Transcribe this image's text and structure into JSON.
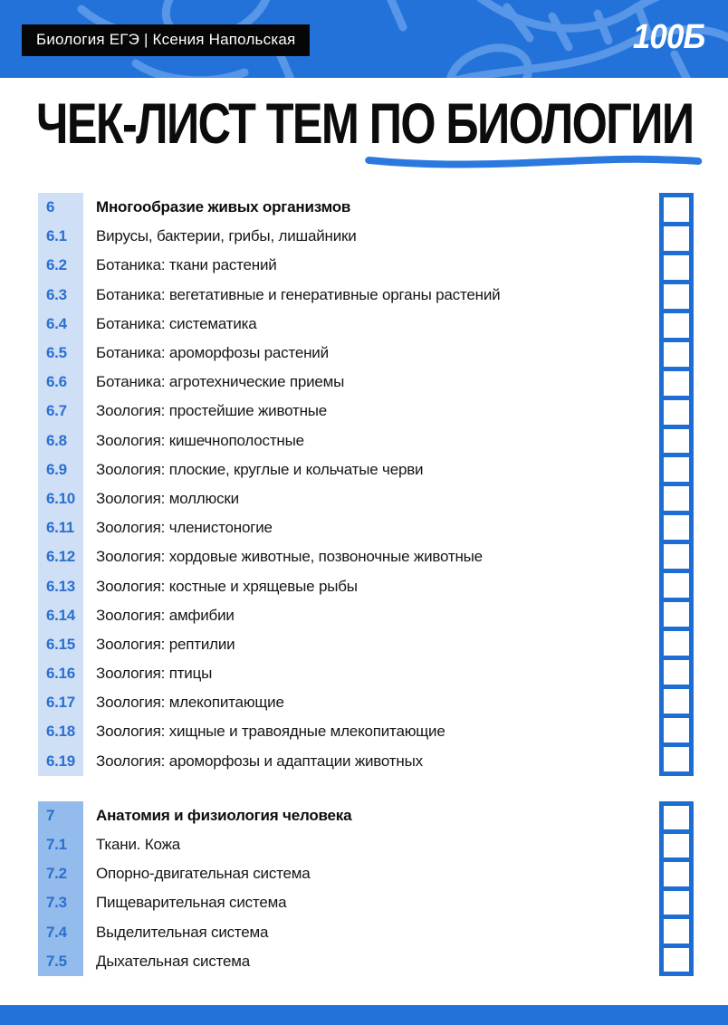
{
  "accent_color": "#1d6dd3",
  "number_color": "#2b6fd0",
  "header": {
    "bg_color": "#2372d9",
    "badge": "Биология ЕГЭ | Ксения Напольская",
    "logo": "100Б"
  },
  "title": {
    "prefix": "ЧЕК-ЛИСТ ТЕМ ",
    "underlined": "ПО БИОЛОГИИ"
  },
  "checkboxes_state": "unchecked",
  "sections": [
    {
      "number": "6",
      "num_col_color": "#cfe0f6",
      "rows": [
        {
          "num": "6",
          "label": "Многообразие живых организмов",
          "bold": true
        },
        {
          "num": "6.1",
          "label": "Вирусы, бактерии, грибы, лишайники"
        },
        {
          "num": "6.2",
          "label": "Ботаника: ткани растений"
        },
        {
          "num": "6.3",
          "label": "Ботаника: вегетативные и генеративные органы растений"
        },
        {
          "num": "6.4",
          "label": "Ботаника: систематика"
        },
        {
          "num": "6.5",
          "label": "Ботаника: ароморфозы растений"
        },
        {
          "num": "6.6",
          "label": "Ботаника: агротехнические приемы"
        },
        {
          "num": "6.7",
          "label": "Зоология: простейшие животные"
        },
        {
          "num": "6.8",
          "label": "Зоология: кишечнополостные"
        },
        {
          "num": "6.9",
          "label": "Зоология: плоские, круглые и кольчатые черви"
        },
        {
          "num": "6.10",
          "label": "Зоология: моллюски"
        },
        {
          "num": "6.11",
          "label": "Зоология: членистоногие"
        },
        {
          "num": "6.12",
          "label": "Зоология: хордовые животные, позвоночные животные"
        },
        {
          "num": "6.13",
          "label": "Зоология: костные и хрящевые рыбы"
        },
        {
          "num": "6.14",
          "label": "Зоология: амфибии"
        },
        {
          "num": "6.15",
          "label": "Зоология: рептилии"
        },
        {
          "num": "6.16",
          "label": "Зоология: птицы"
        },
        {
          "num": "6.17",
          "label": "Зоология: млекопитающие"
        },
        {
          "num": "6.18",
          "label": "Зоология: хищные и травоядные млекопитающие"
        },
        {
          "num": "6.19",
          "label": "Зоология: ароморфозы и адаптации животных"
        }
      ]
    },
    {
      "number": "7",
      "num_col_color": "#93bbec",
      "rows": [
        {
          "num": "7",
          "label": "Анатомия и физиология человека",
          "bold": true
        },
        {
          "num": "7.1",
          "label": "Ткани. Кожа"
        },
        {
          "num": "7.2",
          "label": "Опорно-двигательная система"
        },
        {
          "num": "7.3",
          "label": "Пищеварительная система"
        },
        {
          "num": "7.4",
          "label": "Выделительная система"
        },
        {
          "num": "7.5",
          "label": "Дыхательная система"
        }
      ]
    }
  ]
}
